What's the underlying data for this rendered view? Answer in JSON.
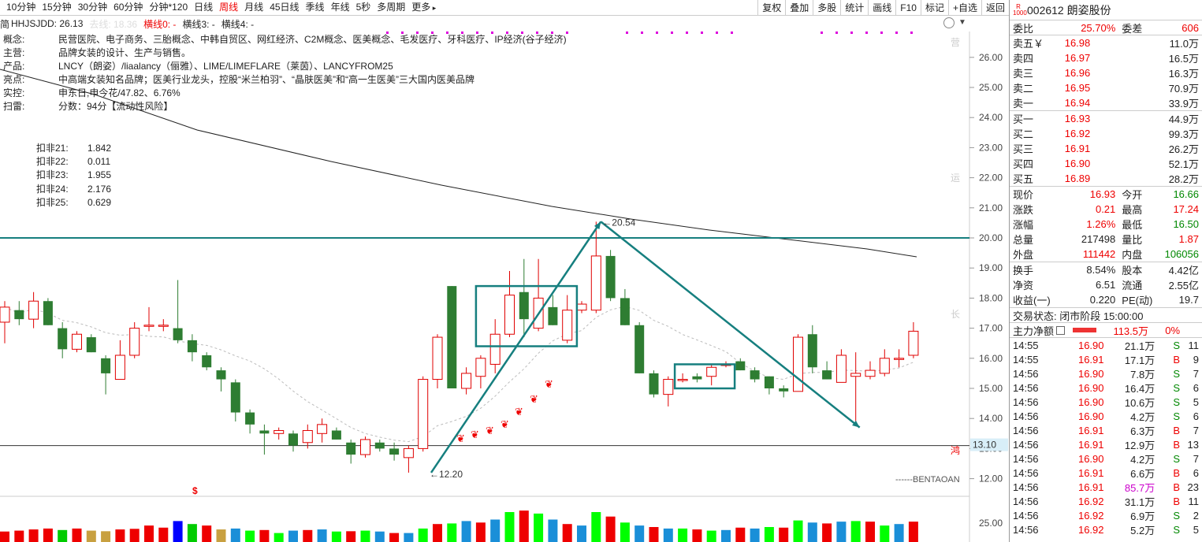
{
  "toolbar": {
    "periods": [
      "10分钟",
      "15分钟",
      "30分钟",
      "60分钟",
      "分钟*120",
      "日线",
      "周线",
      "月线",
      "45日线",
      "季线",
      "年线",
      "5秒",
      "多周期",
      "更多"
    ],
    "active_period": "周线",
    "buttons": [
      "复权",
      "叠加",
      "多股",
      "统计",
      "画线",
      "F10",
      "标记",
      "+自选",
      "返回"
    ]
  },
  "indicator_line": {
    "prefix": "简",
    "name_value": "HHJSJDD: 26.13",
    "faded": "去线: 18.36",
    "line0": "横线0: -",
    "line3": "横线3: -",
    "line4": "横线4: -"
  },
  "info": [
    {
      "k": "概念:",
      "v": "民营医院、电子商务、三胎概念、中韩自贸区、网红经济、C2M概念、医美概念、毛发医疗、牙科医疗、IP经济(谷子经济)"
    },
    {
      "k": "主营:",
      "v": "品牌女装的设计、生产与销售。"
    },
    {
      "k": "产品:",
      "v": "LNCY（朗姿）/liaalancy（俪雅）、LIME/LIMEFLARE（莱茵）、LANCYFROM25"
    },
    {
      "k": "亮点:",
      "v": "中高端女装知名品牌；医美行业龙头，控股“米兰柏羽”、“晶肤医美”和“高一生医美”三大国内医美品牌"
    },
    {
      "k": "实控:",
      "v": "申东日,申今花/47.82、6.76%"
    },
    {
      "k": "扫雷:",
      "v": "分数：94分【流动性风险】"
    }
  ],
  "kf": [
    {
      "k": "扣非21:",
      "v": "1.842"
    },
    {
      "k": "扣非22:",
      "v": "0.011"
    },
    {
      "k": "扣非23:",
      "v": "1.955"
    },
    {
      "k": "扣非24:",
      "v": "2.176"
    },
    {
      "k": "扣非25:",
      "v": "0.629"
    }
  ],
  "chart_data": {
    "type": "candlestick",
    "yticks": [
      "26.00",
      "25.00",
      "24.00",
      "23.00",
      "22.00",
      "21.00",
      "20.00",
      "19.00",
      "18.00",
      "17.00",
      "16.00",
      "15.00",
      "14.00",
      "13.00",
      "12.00"
    ],
    "vol_tick": "25.00",
    "price_marker": "13.10",
    "high_label": "20.54",
    "low_label": "12.20",
    "watermark": "------BENTAOAN",
    "side_labels": [
      "营",
      "运",
      "长",
      "鸿"
    ],
    "dollar_mark": "$",
    "colors": {
      "up": "#e00000",
      "down": "#2e7d32",
      "trend": "#167f7f",
      "hline": "#167f7f"
    },
    "hline_price": 20.0,
    "arrows": [
      {
        "from": [
          0,
          12.2
        ],
        "to": [
          1,
          20.54
        ]
      },
      {
        "from": [
          1,
          20.54
        ],
        "to": [
          2,
          13.7
        ]
      }
    ],
    "candles": [
      [
        17.2,
        17.9,
        16.5,
        17.7
      ],
      [
        17.6,
        17.9,
        17.1,
        17.3
      ],
      [
        17.3,
        18.2,
        17.0,
        17.9
      ],
      [
        17.9,
        18.0,
        17.1,
        17.1
      ],
      [
        17.0,
        17.2,
        16.0,
        16.3
      ],
      [
        16.3,
        16.9,
        16.2,
        16.8
      ],
      [
        16.7,
        16.8,
        16.2,
        16.2
      ],
      [
        16.0,
        16.1,
        14.8,
        15.5
      ],
      [
        15.3,
        16.6,
        15.3,
        16.1
      ],
      [
        16.1,
        17.2,
        16.0,
        17.0
      ],
      [
        17.1,
        17.7,
        16.9,
        17.1
      ],
      [
        17.1,
        17.3,
        16.9,
        17.1
      ],
      [
        17.0,
        18.6,
        16.5,
        16.6
      ],
      [
        16.6,
        16.8,
        15.9,
        16.2
      ],
      [
        16.1,
        16.2,
        15.6,
        15.7
      ],
      [
        15.6,
        15.7,
        14.9,
        15.3
      ],
      [
        15.2,
        15.3,
        13.9,
        14.2
      ],
      [
        14.2,
        14.3,
        13.5,
        13.8
      ],
      [
        13.6,
        13.8,
        12.8,
        13.5
      ],
      [
        13.5,
        13.7,
        13.3,
        13.6
      ],
      [
        13.5,
        13.6,
        12.9,
        13.1
      ],
      [
        13.2,
        13.8,
        13.0,
        13.6
      ],
      [
        13.5,
        14.0,
        13.2,
        13.8
      ],
      [
        13.6,
        13.7,
        13.3,
        13.3
      ],
      [
        13.2,
        13.3,
        12.5,
        12.8
      ],
      [
        12.8,
        13.4,
        12.7,
        13.3
      ],
      [
        13.2,
        13.3,
        12.9,
        13.0
      ],
      [
        13.0,
        13.2,
        12.6,
        12.8
      ],
      [
        12.7,
        13.1,
        12.2,
        13.0
      ],
      [
        13.0,
        15.4,
        12.9,
        15.3
      ],
      [
        15.3,
        16.8,
        15.0,
        16.7
      ],
      [
        18.4,
        18.4,
        15.0,
        15.0
      ],
      [
        15.0,
        15.7,
        14.8,
        15.5
      ],
      [
        15.4,
        16.1,
        15.0,
        16.0
      ],
      [
        15.8,
        17.3,
        15.5,
        16.8
      ],
      [
        16.8,
        18.9,
        16.7,
        18.1
      ],
      [
        18.2,
        19.3,
        16.7,
        17.3
      ],
      [
        17.0,
        19.3,
        16.9,
        18.0
      ],
      [
        17.7,
        18.1,
        17.1,
        17.1
      ],
      [
        16.6,
        18.1,
        16.5,
        17.6
      ],
      [
        17.6,
        17.9,
        17.5,
        17.8
      ],
      [
        17.6,
        20.54,
        17.5,
        19.4
      ],
      [
        19.4,
        19.6,
        17.9,
        18.0
      ],
      [
        18.0,
        18.3,
        17.1,
        17.1
      ],
      [
        17.1,
        17.2,
        15.5,
        15.5
      ],
      [
        15.5,
        15.6,
        14.7,
        14.8
      ],
      [
        14.8,
        15.4,
        14.4,
        15.3
      ],
      [
        15.3,
        15.5,
        15.2,
        15.3
      ],
      [
        15.4,
        15.5,
        15.2,
        15.3
      ],
      [
        15.4,
        15.8,
        15.1,
        15.7
      ],
      [
        15.8,
        15.9,
        15.7,
        15.8
      ],
      [
        15.9,
        16.0,
        15.6,
        15.6
      ],
      [
        15.6,
        15.7,
        15.2,
        15.3
      ],
      [
        15.4,
        15.4,
        14.8,
        15.0
      ],
      [
        15.0,
        15.1,
        14.7,
        14.9
      ],
      [
        14.9,
        16.8,
        14.9,
        16.7
      ],
      [
        16.8,
        17.1,
        15.5,
        15.7
      ],
      [
        15.6,
        15.9,
        15.3,
        15.3
      ],
      [
        15.2,
        16.3,
        15.2,
        16.1
      ],
      [
        15.4,
        16.2,
        13.8,
        15.5
      ],
      [
        15.4,
        15.9,
        15.3,
        15.6
      ],
      [
        15.5,
        16.3,
        15.4,
        16.0
      ],
      [
        16.0,
        16.3,
        15.7,
        16.0
      ],
      [
        16.1,
        17.2,
        16.0,
        16.9
      ]
    ],
    "volumes": [
      35,
      38,
      42,
      45,
      40,
      45,
      38,
      36,
      42,
      44,
      55,
      48,
      70,
      60,
      55,
      42,
      45,
      38,
      40,
      30,
      38,
      40,
      42,
      35,
      36,
      38,
      35,
      30,
      30,
      45,
      60,
      62,
      70,
      65,
      75,
      100,
      105,
      95,
      75,
      60,
      55,
      100,
      85,
      65,
      55,
      50,
      45,
      45,
      42,
      38,
      40,
      48,
      45,
      50,
      48,
      72,
      65,
      62,
      68,
      70,
      68,
      55,
      60,
      68
    ]
  },
  "panel": {
    "badge_top": "R",
    "badge_bottom": "1000",
    "stock": "002612 朗姿股份",
    "webi": {
      "k1": "委比",
      "v1": "25.70%",
      "k2": "委差",
      "v2": "606"
    },
    "asks": [
      {
        "k": "卖五￥",
        "p": "16.98",
        "v": "11.0万"
      },
      {
        "k": "卖四",
        "p": "16.97",
        "v": "16.5万"
      },
      {
        "k": "卖三",
        "p": "16.96",
        "v": "16.3万"
      },
      {
        "k": "卖二",
        "p": "16.95",
        "v": "70.9万"
      },
      {
        "k": "卖一",
        "p": "16.94",
        "v": "33.9万"
      }
    ],
    "bids": [
      {
        "k": "买一",
        "p": "16.93",
        "v": "44.9万"
      },
      {
        "k": "买二",
        "p": "16.92",
        "v": "99.3万"
      },
      {
        "k": "买三",
        "p": "16.91",
        "v": "26.2万"
      },
      {
        "k": "买四",
        "p": "16.90",
        "v": "52.1万"
      },
      {
        "k": "买五",
        "p": "16.89",
        "v": "28.2万"
      }
    ],
    "quote": [
      {
        "k1": "现价",
        "v1": "16.93",
        "c1": "red",
        "k2": "今开",
        "v2": "16.66",
        "c2": "green"
      },
      {
        "k1": "涨跌",
        "v1": "0.21",
        "c1": "red",
        "k2": "最高",
        "v2": "17.24",
        "c2": "red"
      },
      {
        "k1": "涨幅",
        "v1": "1.26%",
        "c1": "red",
        "k2": "最低",
        "v2": "16.50",
        "c2": "green"
      },
      {
        "k1": "总量",
        "v1": "217498",
        "c1": "",
        "k2": "量比",
        "v2": "1.87",
        "c2": "red"
      },
      {
        "k1": "外盘",
        "v1": "111442",
        "c1": "red",
        "k2": "内盘",
        "v2": "106056",
        "c2": "green"
      }
    ],
    "fin": [
      {
        "k1": "换手",
        "v1": "8.54%",
        "k2": "股本",
        "v2": "4.42亿"
      },
      {
        "k1": "净资",
        "v1": "6.51",
        "k2": "流通",
        "v2": "2.55亿"
      },
      {
        "k1": "收益(一)",
        "v1": "0.220",
        "k2": "PE(动)",
        "v2": "19.7"
      }
    ],
    "status": "交易状态: 闭市阶段 15:00:00",
    "flow_label": "主力净额",
    "flow_value": "113.5万",
    "flow_pct": "0%",
    "ticks": [
      {
        "t": "14:55",
        "p": "16.90",
        "v": "21.1万",
        "bs": "S",
        "n": "11"
      },
      {
        "t": "14:55",
        "p": "16.91",
        "v": "17.1万",
        "bs": "B",
        "n": "9"
      },
      {
        "t": "14:56",
        "p": "16.90",
        "v": "7.8万",
        "bs": "S",
        "n": "7"
      },
      {
        "t": "14:56",
        "p": "16.90",
        "v": "16.4万",
        "bs": "S",
        "n": "6"
      },
      {
        "t": "14:56",
        "p": "16.90",
        "v": "10.6万",
        "bs": "S",
        "n": "5"
      },
      {
        "t": "14:56",
        "p": "16.90",
        "v": "4.2万",
        "bs": "S",
        "n": "6"
      },
      {
        "t": "14:56",
        "p": "16.91",
        "v": "6.3万",
        "bs": "B",
        "n": "7"
      },
      {
        "t": "14:56",
        "p": "16.91",
        "v": "12.9万",
        "bs": "B",
        "n": "13"
      },
      {
        "t": "14:56",
        "p": "16.90",
        "v": "4.2万",
        "bs": "S",
        "n": "7"
      },
      {
        "t": "14:56",
        "p": "16.91",
        "v": "6.6万",
        "bs": "B",
        "n": "6"
      },
      {
        "t": "14:56",
        "p": "16.91",
        "v": "85.7万",
        "bs": "B",
        "n": "23"
      },
      {
        "t": "14:56",
        "p": "16.92",
        "v": "31.1万",
        "bs": "B",
        "n": "11"
      },
      {
        "t": "14:56",
        "p": "16.92",
        "v": "6.9万",
        "bs": "S",
        "n": "2"
      },
      {
        "t": "14:56",
        "p": "16.92",
        "v": "5.2万",
        "bs": "S",
        "n": "5"
      }
    ]
  }
}
